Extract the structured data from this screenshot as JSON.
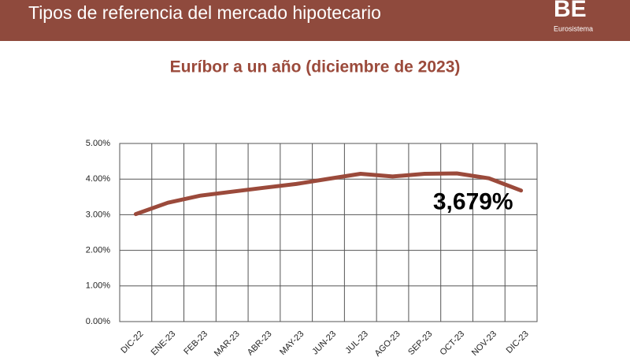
{
  "header": {
    "title": "Tipos de referencia del mercado hipotecario",
    "logo": "BE",
    "logo_subtitle": "Eurosistema"
  },
  "chart_data": {
    "type": "line",
    "title": "Euríbor a un año (diciembre de 2023)",
    "categories": [
      "DIC-22",
      "ENE-23",
      "FEB-23",
      "MAR-23",
      "ABR-23",
      "MAY-23",
      "JUN-23",
      "JUL-23",
      "AGO-23",
      "SEP-23",
      "OCT-23",
      "NOV-23",
      "DIC-23"
    ],
    "values": [
      3.018,
      3.337,
      3.534,
      3.647,
      3.757,
      3.862,
      4.007,
      4.149,
      4.073,
      4.149,
      4.16,
      4.022,
      3.679
    ],
    "value_labels": [
      null,
      null,
      null,
      null,
      null,
      null,
      null,
      null,
      null,
      null,
      null,
      null,
      "3,679%"
    ],
    "color": "#9b4a3b",
    "ylim": [
      0,
      5
    ],
    "yticks": [
      {
        "value": 0,
        "label": "0.00%"
      },
      {
        "value": 1,
        "label": "1.00%"
      },
      {
        "value": 2,
        "label": "2.00%"
      },
      {
        "value": 3,
        "label": "3.00%"
      },
      {
        "value": 4,
        "label": "4.00%"
      },
      {
        "value": 5,
        "label": "5.00%"
      }
    ],
    "grid": true
  }
}
